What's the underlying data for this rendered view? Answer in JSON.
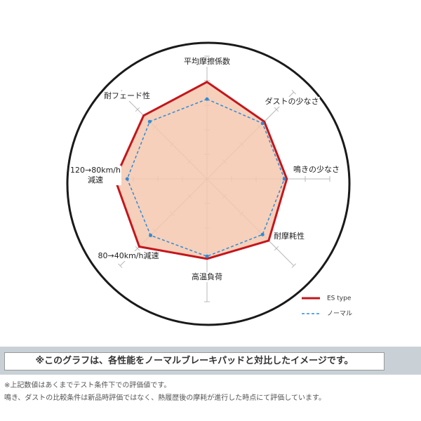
{
  "chart_data": {
    "type": "radar",
    "categories": [
      "平均摩擦係数",
      "ダストの少なさ",
      "鳴きの少なさ",
      "耐摩耗性",
      "高温負荷",
      "80→40km/h減速",
      "120→80km/h\n減速",
      "耐フェード性"
    ],
    "series": [
      {
        "name": "ES type",
        "color": "#c4161c",
        "fill": "#f5c8ae",
        "line_style": "solid",
        "values": [
          7.9,
          6.6,
          6.5,
          7.1,
          6.5,
          7.8,
          7.5,
          7.3
        ]
      },
      {
        "name": "ノーマル",
        "color": "#2f8ad8",
        "line_style": "dashed",
        "values": [
          6.5,
          6.4,
          6.3,
          6.4,
          6.3,
          6.5,
          6.5,
          6.6
        ]
      }
    ],
    "rlim": [
      0,
      10
    ],
    "rticks": [
      2,
      4,
      6,
      8,
      10
    ],
    "legend": "bottom-right"
  },
  "banner": "※このグラフは、各性能をノーマルブレーキパッドと対比したイメージです。",
  "notes": [
    "※上記数値はあくまでテスト条件下での評価値です。",
    "鳴き、ダストの比較条件は新品時評価ではなく、熱履歴後の摩耗が進行した時点にて評価しています。"
  ]
}
